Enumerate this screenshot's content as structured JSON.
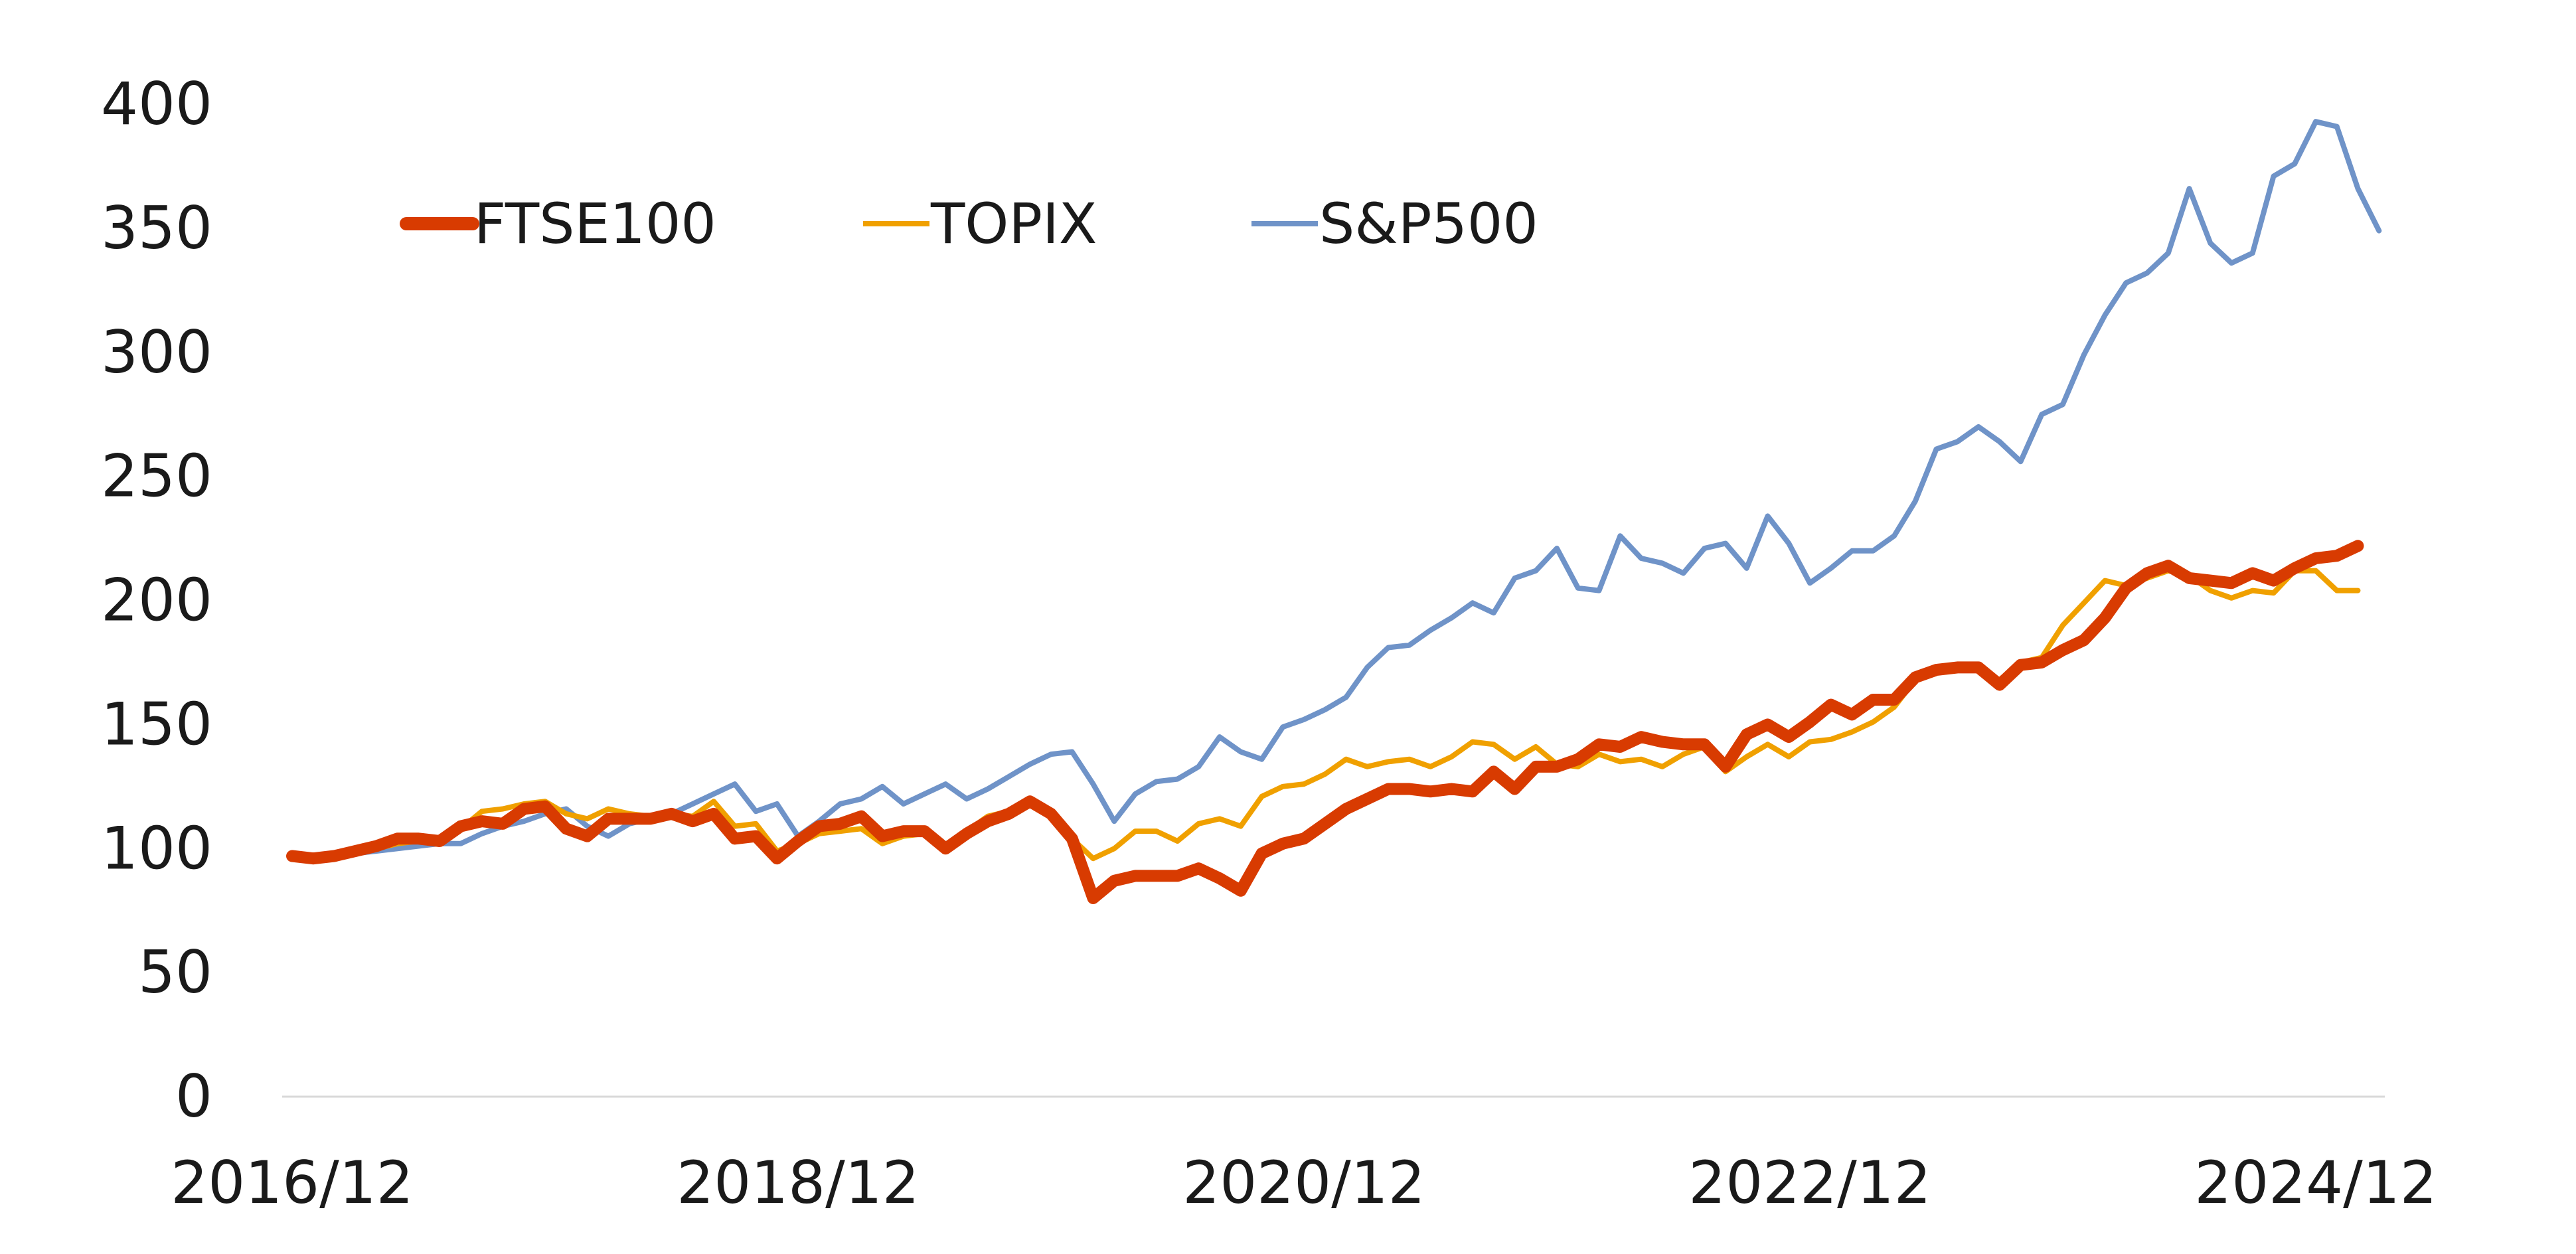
{
  "chart_data": {
    "type": "line",
    "title": "",
    "xlabel": "",
    "ylabel": "",
    "ylim": [
      0,
      400
    ],
    "yticks": [
      "0",
      "50",
      "100",
      "150",
      "200",
      "250",
      "300",
      "350",
      "400"
    ],
    "xticks": [
      "2016/12",
      "2018/12",
      "2020/12",
      "2022/12",
      "2024/12"
    ],
    "xlim": [
      "2016/12",
      "2025/03"
    ],
    "grid": false,
    "legend_position": "top-left",
    "x_start": "2016/12",
    "x_step": "1 month",
    "series": [
      {
        "name": "FTSE100",
        "color": "#d83b01",
        "values": [
          97,
          96,
          97,
          99,
          101,
          104,
          104,
          103,
          109,
          111,
          110,
          116,
          117,
          108,
          105,
          112,
          112,
          112,
          114,
          111,
          114,
          104,
          105,
          96,
          103,
          109,
          110,
          113,
          105,
          107,
          107,
          100,
          106,
          111,
          114,
          119,
          114,
          104,
          80,
          87,
          89,
          89,
          89,
          92,
          88,
          83,
          98,
          102,
          104,
          110,
          116,
          120,
          124,
          124,
          123,
          124,
          123,
          131,
          124,
          133,
          133,
          136,
          142,
          141,
          145,
          143,
          142,
          142,
          133,
          146,
          150,
          145,
          151,
          158,
          154,
          160,
          160,
          169,
          172,
          173,
          173,
          166,
          174,
          175,
          180,
          184,
          193,
          205,
          211,
          214,
          209,
          208,
          207,
          211,
          208,
          213,
          217,
          218,
          222
        ]
      },
      {
        "name": "TOPIX",
        "color": "#f0a000",
        "values": [
          97,
          96,
          98,
          99,
          100,
          102,
          103,
          104,
          108,
          115,
          116,
          118,
          119,
          114,
          112,
          116,
          114,
          113,
          114,
          113,
          119,
          109,
          110,
          99,
          102,
          106,
          107,
          108,
          102,
          105,
          106,
          101,
          107,
          113,
          115,
          118,
          113,
          104,
          96,
          100,
          107,
          107,
          103,
          110,
          112,
          109,
          121,
          125,
          126,
          130,
          136,
          133,
          135,
          136,
          133,
          137,
          143,
          142,
          136,
          141,
          134,
          133,
          138,
          135,
          136,
          133,
          138,
          141,
          131,
          137,
          142,
          137,
          143,
          144,
          147,
          151,
          157,
          168,
          171,
          172,
          172,
          168,
          175,
          177,
          190,
          199,
          208,
          206,
          209,
          212,
          210,
          204,
          201,
          204,
          203,
          212,
          212,
          204,
          204
        ]
      },
      {
        "name": "S&P500",
        "color": "#6f93c8",
        "values": [
          97,
          96,
          98,
          98,
          99,
          100,
          101,
          102,
          102,
          106,
          109,
          111,
          114,
          116,
          109,
          105,
          110,
          112,
          114,
          118,
          122,
          126,
          115,
          118,
          105,
          111,
          118,
          120,
          125,
          118,
          122,
          126,
          120,
          124,
          129,
          134,
          138,
          139,
          126,
          111,
          122,
          127,
          128,
          133,
          145,
          139,
          136,
          149,
          152,
          156,
          161,
          173,
          181,
          182,
          188,
          193,
          199,
          195,
          209,
          212,
          221,
          205,
          204,
          226,
          217,
          215,
          211,
          221,
          223,
          213,
          234,
          223,
          207,
          213,
          220,
          220,
          226,
          240,
          261,
          264,
          270,
          264,
          256,
          275,
          279,
          299,
          315,
          328,
          332,
          340,
          366,
          344,
          336,
          340,
          371,
          376,
          393,
          391,
          366,
          349
        ]
      }
    ]
  }
}
